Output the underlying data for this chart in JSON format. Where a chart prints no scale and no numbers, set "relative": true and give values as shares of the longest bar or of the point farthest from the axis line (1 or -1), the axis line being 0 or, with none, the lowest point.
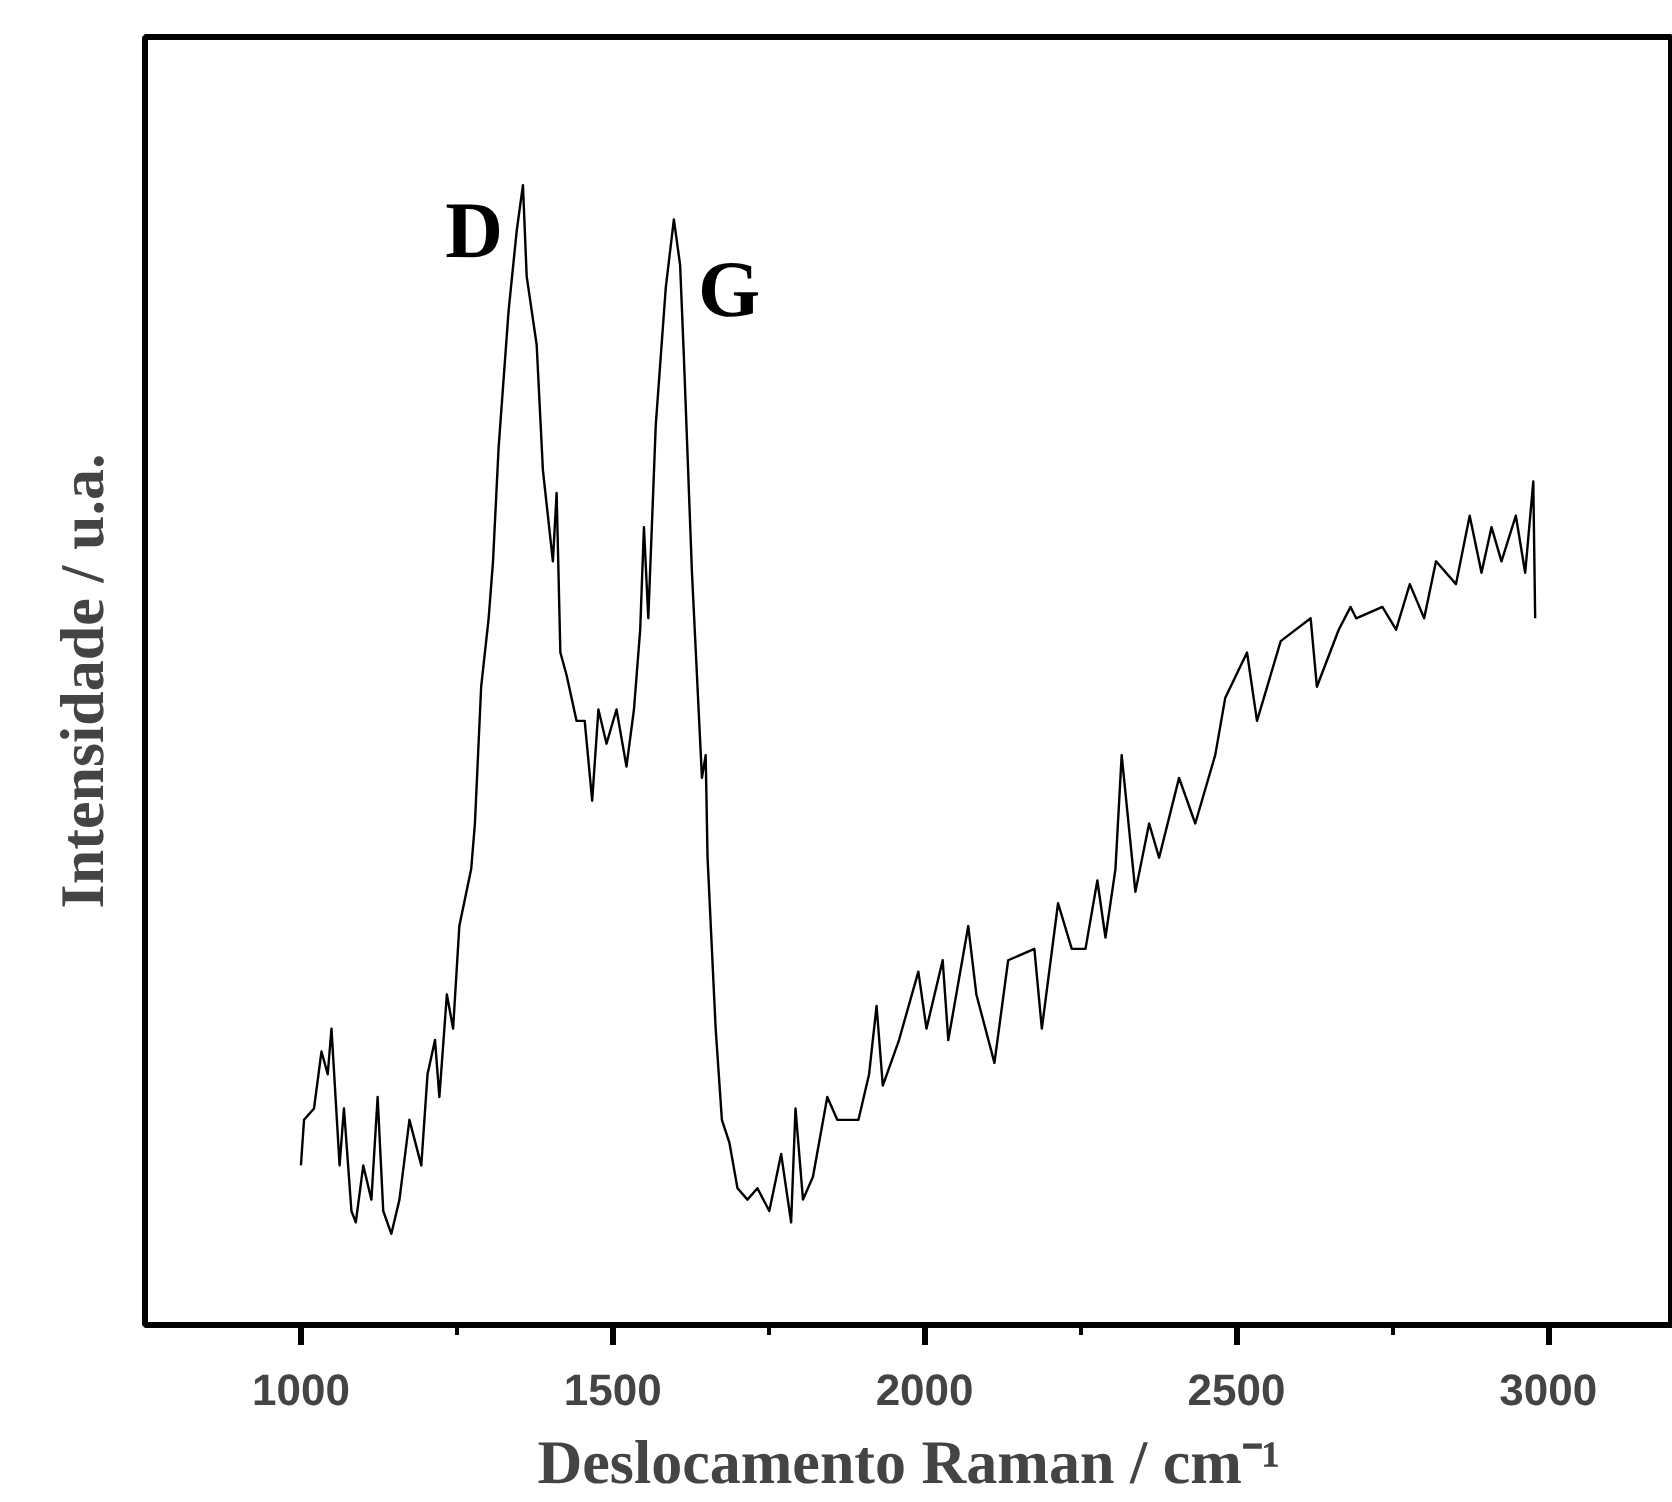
{
  "chart_data": {
    "type": "line",
    "relative": true,
    "xlabel": "Deslocamento Raman / cm⁻¹",
    "ylabel": "Intensidade / u.a.",
    "xlim": [
      750,
      3200
    ],
    "xticks": [
      1000,
      {
        "value": 1250,
        "label": null
      },
      1500,
      {
        "value": 1750,
        "label": null
      },
      2000,
      {
        "value": 2250,
        "label": null
      },
      2500,
      {
        "value": 2750,
        "label": null
      },
      3000
    ],
    "annotations": [
      {
        "text": "D",
        "x": 1356,
        "y": 1.0
      },
      {
        "text": "G",
        "x": 1598,
        "y": 0.97
      }
    ],
    "series": [
      {
        "color": "#000000",
        "x": [
          1000,
          1005,
          1021,
          1033,
          1043,
          1049,
          1062,
          1069,
          1081,
          1088,
          1100,
          1113,
          1123,
          1132,
          1145,
          1158,
          1174,
          1193,
          1203,
          1215,
          1222,
          1234,
          1244,
          1254,
          1273,
          1279,
          1289,
          1301,
          1308,
          1317,
          1333,
          1346,
          1356,
          1362,
          1378,
          1388,
          1404,
          1410,
          1416,
          1426,
          1442,
          1455,
          1467,
          1477,
          1490,
          1506,
          1522,
          1534,
          1544,
          1550,
          1557,
          1569,
          1585,
          1598,
          1608,
          1614,
          1627,
          1643,
          1649,
          1652,
          1665,
          1675,
          1687,
          1700,
          1716,
          1732,
          1751,
          1770,
          1786,
          1793,
          1805,
          1821,
          1844,
          1860,
          1894,
          1911,
          1923,
          1933,
          1959,
          1990,
          2003,
          2029,
          2038,
          2070,
          2083,
          2112,
          2134,
          2176,
          2188,
          2214,
          2236,
          2258,
          2277,
          2290,
          2306,
          2316,
          2338,
          2360,
          2376,
          2408,
          2434,
          2466,
          2482,
          2517,
          2533,
          2571,
          2619,
          2629,
          2664,
          2683,
          2692,
          2734,
          2756,
          2778,
          2801,
          2820,
          2852,
          2874,
          2893,
          2909,
          2925,
          2948,
          2963,
          2976,
          2979
        ],
        "values": [
          0.14,
          0.18,
          0.19,
          0.24,
          0.22,
          0.26,
          0.14,
          0.19,
          0.1,
          0.09,
          0.14,
          0.11,
          0.2,
          0.1,
          0.08,
          0.11,
          0.18,
          0.14,
          0.22,
          0.25,
          0.2,
          0.29,
          0.26,
          0.35,
          0.4,
          0.44,
          0.56,
          0.62,
          0.67,
          0.77,
          0.89,
          0.96,
          1.0,
          0.92,
          0.86,
          0.75,
          0.67,
          0.73,
          0.59,
          0.57,
          0.53,
          0.53,
          0.46,
          0.54,
          0.51,
          0.54,
          0.49,
          0.54,
          0.61,
          0.7,
          0.62,
          0.79,
          0.91,
          0.97,
          0.93,
          0.85,
          0.66,
          0.48,
          0.5,
          0.41,
          0.26,
          0.18,
          0.16,
          0.12,
          0.11,
          0.12,
          0.1,
          0.15,
          0.09,
          0.19,
          0.11,
          0.13,
          0.2,
          0.18,
          0.18,
          0.22,
          0.28,
          0.21,
          0.25,
          0.31,
          0.26,
          0.32,
          0.25,
          0.35,
          0.29,
          0.23,
          0.32,
          0.33,
          0.26,
          0.37,
          0.33,
          0.33,
          0.39,
          0.34,
          0.4,
          0.5,
          0.38,
          0.44,
          0.41,
          0.48,
          0.44,
          0.5,
          0.55,
          0.59,
          0.53,
          0.6,
          0.62,
          0.56,
          0.61,
          0.63,
          0.62,
          0.63,
          0.61,
          0.65,
          0.62,
          0.67,
          0.65,
          0.71,
          0.66,
          0.7,
          0.67,
          0.71,
          0.66,
          0.74,
          0.62
        ]
      }
    ]
  }
}
